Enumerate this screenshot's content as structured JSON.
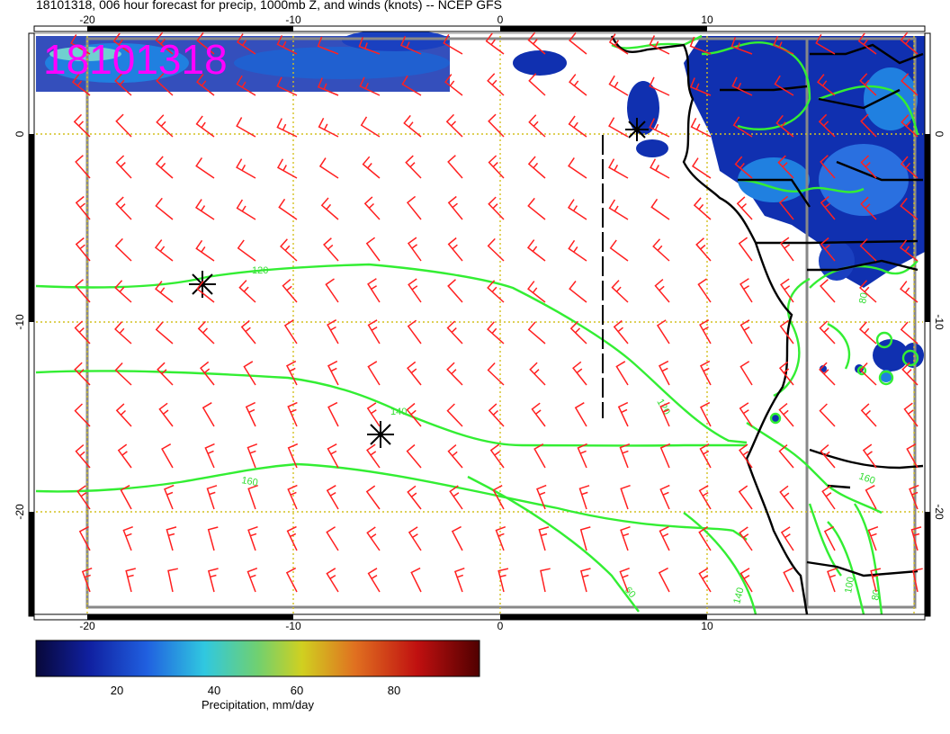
{
  "title": "18101318, 006 hour forecast for precip, 1000mb Z, and winds (knots) -- NCEP GFS",
  "stamp": "18101318",
  "x_ticks": [
    "-20",
    "-10",
    "0",
    "10"
  ],
  "y_ticks": [
    "0",
    "-10",
    "-20"
  ],
  "contour_labels": [
    "120",
    "140",
    "160",
    "120",
    "140",
    "160",
    "60",
    "80",
    "100",
    "80"
  ],
  "colorbar": {
    "label": "Precipitation, mm/day",
    "ticks": [
      "20",
      "40",
      "60",
      "80"
    ],
    "colors": [
      "#08083a",
      "#1020a0",
      "#2060e0",
      "#30c8e0",
      "#70d070",
      "#d0d020",
      "#e07020",
      "#c01010",
      "#500000"
    ]
  },
  "colors": {
    "wind_barb": "#ff2020",
    "contour": "#33ee33",
    "frame": "#888888",
    "gridline": "#d4c020",
    "stamp": "#ff00ff"
  }
}
